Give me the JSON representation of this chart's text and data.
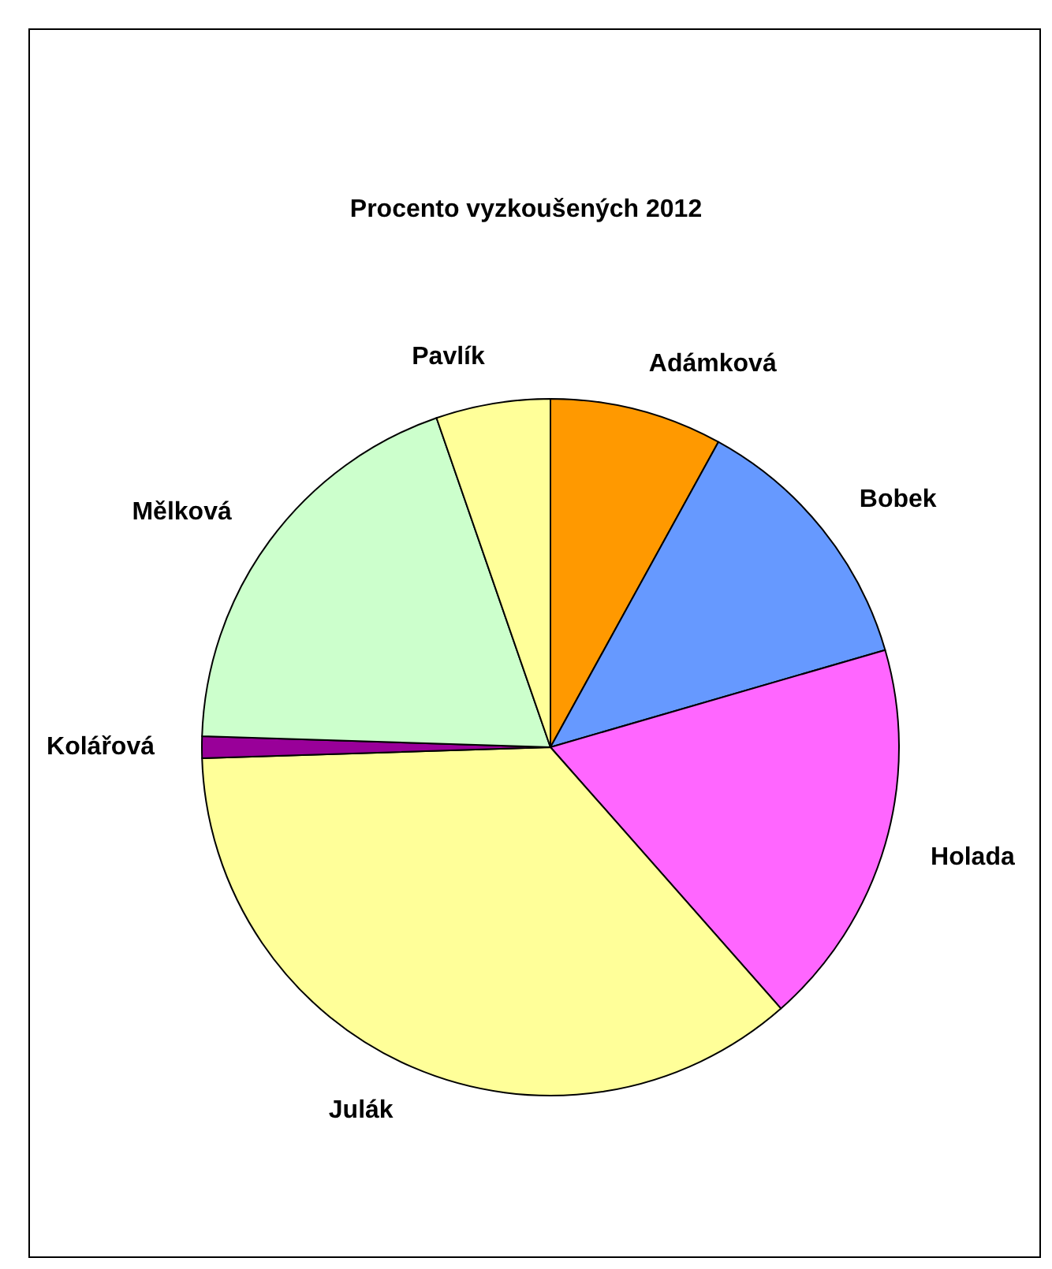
{
  "chart_data": {
    "type": "pie",
    "title": "Procento vyzkoušených 2012",
    "categories": [
      "Adámková",
      "Bobek",
      "Holada",
      "Julák",
      "Kolářová",
      "Mělková",
      "Pavlík"
    ],
    "values": [
      8,
      12.5,
      18,
      36,
      1,
      19.2,
      5.3
    ],
    "colors": [
      "#ff9900",
      "#6699ff",
      "#ff66ff",
      "#ffff99",
      "#990099",
      "#ccffcc",
      "#ffff99"
    ],
    "legend": false
  }
}
